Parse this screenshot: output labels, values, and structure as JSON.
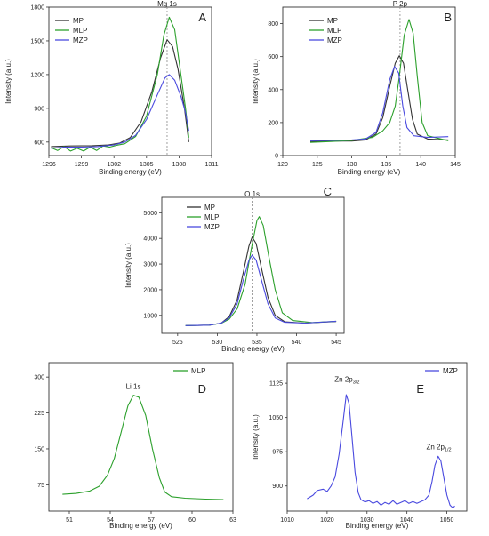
{
  "chart_data": [
    {
      "id": "A",
      "type": "line",
      "panel_label": "A",
      "xlabel": "Binding energy (eV)",
      "ylabel": "Intensity (a.u.)",
      "xlim": [
        1296,
        1311
      ],
      "ylim": [
        480,
        1800
      ],
      "xticks": [
        "1296",
        "1299",
        "1302",
        "1305",
        "1308",
        "1311"
      ],
      "yticks": [
        "600",
        "900",
        "1200",
        "1500",
        "1800"
      ],
      "xtick_values": [
        1296,
        1299,
        1302,
        1305,
        1308,
        1311
      ],
      "ytick_values": [
        600,
        900,
        1200,
        1500,
        1800
      ],
      "legend_position": "top-left",
      "refline": {
        "x": 1306.9,
        "label": "Mg 1s"
      },
      "series": [
        {
          "name": "MP",
          "color": "#333333",
          "points": [
            [
              1296.2,
              560
            ],
            [
              1298,
              565
            ],
            [
              1300,
              568
            ],
            [
              1301.5,
              575
            ],
            [
              1302.5,
              590
            ],
            [
              1303.5,
              640
            ],
            [
              1304.5,
              780
            ],
            [
              1305.5,
              1050
            ],
            [
              1306.3,
              1350
            ],
            [
              1306.9,
              1510
            ],
            [
              1307.4,
              1450
            ],
            [
              1307.9,
              1250
            ],
            [
              1308.5,
              900
            ],
            [
              1308.9,
              600
            ]
          ]
        },
        {
          "name": "MLP",
          "color": "#2ca02c",
          "points": [
            [
              1296.2,
              550
            ],
            [
              1296.8,
              525
            ],
            [
              1297.4,
              560
            ],
            [
              1298,
              520
            ],
            [
              1298.6,
              545
            ],
            [
              1299.2,
              520
            ],
            [
              1299.8,
              555
            ],
            [
              1300.4,
              525
            ],
            [
              1301,
              565
            ],
            [
              1301.6,
              555
            ],
            [
              1302.2,
              570
            ],
            [
              1303,
              585
            ],
            [
              1304,
              650
            ],
            [
              1305,
              830
            ],
            [
              1306,
              1200
            ],
            [
              1306.6,
              1550
            ],
            [
              1307.1,
              1710
            ],
            [
              1307.6,
              1600
            ],
            [
              1308.1,
              1250
            ],
            [
              1308.6,
              900
            ],
            [
              1308.9,
              640
            ]
          ]
        },
        {
          "name": "MZP",
          "color": "#4a4adf",
          "points": [
            [
              1296.2,
              545
            ],
            [
              1297.5,
              555
            ],
            [
              1299,
              555
            ],
            [
              1300.5,
              560
            ],
            [
              1302,
              575
            ],
            [
              1303,
              600
            ],
            [
              1304,
              660
            ],
            [
              1305,
              800
            ],
            [
              1306,
              1020
            ],
            [
              1306.7,
              1170
            ],
            [
              1307.1,
              1200
            ],
            [
              1307.6,
              1150
            ],
            [
              1308.2,
              1000
            ],
            [
              1308.6,
              860
            ],
            [
              1308.9,
              700
            ]
          ]
        }
      ]
    },
    {
      "id": "B",
      "type": "line",
      "panel_label": "B",
      "xlabel": "Binding energy (eV)",
      "ylabel": "Intensity (a.u.)",
      "xlim": [
        120,
        145
      ],
      "ylim": [
        0,
        900
      ],
      "xticks": [
        "120",
        "125",
        "130",
        "135",
        "140",
        "145"
      ],
      "yticks": [
        "0",
        "200",
        "400",
        "600",
        "800"
      ],
      "xtick_values": [
        120,
        125,
        130,
        135,
        140,
        145
      ],
      "ytick_values": [
        0,
        200,
        400,
        600,
        800
      ],
      "legend_position": "top-left",
      "refline": {
        "x": 137,
        "label": "P 2p"
      },
      "series": [
        {
          "name": "MP",
          "color": "#333333",
          "points": [
            [
              124,
              85
            ],
            [
              127,
              88
            ],
            [
              130,
              88
            ],
            [
              132,
              95
            ],
            [
              133.5,
              130
            ],
            [
              134.5,
              230
            ],
            [
              135.5,
              420
            ],
            [
              136.3,
              560
            ],
            [
              136.9,
              605
            ],
            [
              137.5,
              560
            ],
            [
              138.1,
              400
            ],
            [
              138.8,
              220
            ],
            [
              139.5,
              130
            ],
            [
              141,
              100
            ],
            [
              144,
              95
            ]
          ]
        },
        {
          "name": "MLP",
          "color": "#2ca02c",
          "points": [
            [
              124,
              80
            ],
            [
              127,
              85
            ],
            [
              130,
              92
            ],
            [
              133,
              110
            ],
            [
              134.5,
              150
            ],
            [
              135.5,
              200
            ],
            [
              136.3,
              300
            ],
            [
              136.9,
              480
            ],
            [
              137.6,
              730
            ],
            [
              138.3,
              825
            ],
            [
              138.9,
              740
            ],
            [
              139.5,
              480
            ],
            [
              140.2,
              200
            ],
            [
              141,
              120
            ],
            [
              144,
              90
            ]
          ]
        },
        {
          "name": "MZP",
          "color": "#4a4adf",
          "points": [
            [
              124,
              90
            ],
            [
              127,
              92
            ],
            [
              130,
              95
            ],
            [
              132,
              100
            ],
            [
              133.5,
              140
            ],
            [
              134.5,
              260
            ],
            [
              135.5,
              460
            ],
            [
              136.2,
              540
            ],
            [
              136.8,
              500
            ],
            [
              137.4,
              300
            ],
            [
              138,
              170
            ],
            [
              139,
              120
            ],
            [
              141,
              110
            ],
            [
              144,
              115
            ]
          ]
        }
      ]
    },
    {
      "id": "C",
      "type": "line",
      "panel_label": "C",
      "xlabel": "Binding energy (eV)",
      "ylabel": "Intensity (a.u.)",
      "xlim": [
        523,
        546
      ],
      "ylim": [
        300,
        5600
      ],
      "xticks": [
        "525",
        "530",
        "535",
        "540",
        "545"
      ],
      "yticks": [
        "1000",
        "2000",
        "3000",
        "4000",
        "5000"
      ],
      "xtick_values": [
        525,
        530,
        535,
        540,
        545
      ],
      "ytick_values": [
        1000,
        2000,
        3000,
        4000,
        5000
      ],
      "legend_position": "top-left",
      "refline": {
        "x": 534.4,
        "label": "O 1s"
      },
      "series": [
        {
          "name": "MP",
          "color": "#333333",
          "points": [
            [
              526,
              600
            ],
            [
              529,
              620
            ],
            [
              530.5,
              700
            ],
            [
              531.5,
              950
            ],
            [
              532.5,
              1600
            ],
            [
              533.3,
              2700
            ],
            [
              534,
              3700
            ],
            [
              534.4,
              4050
            ],
            [
              534.9,
              3800
            ],
            [
              535.6,
              2800
            ],
            [
              536.4,
              1700
            ],
            [
              537.3,
              1000
            ],
            [
              538.5,
              750
            ],
            [
              541,
              700
            ],
            [
              545,
              760
            ]
          ]
        },
        {
          "name": "MLP",
          "color": "#2ca02c",
          "points": [
            [
              526,
              600
            ],
            [
              529,
              620
            ],
            [
              530.5,
              690
            ],
            [
              531.5,
              850
            ],
            [
              532.5,
              1250
            ],
            [
              533.5,
              2200
            ],
            [
              534.3,
              3600
            ],
            [
              535,
              4700
            ],
            [
              535.3,
              4850
            ],
            [
              535.8,
              4500
            ],
            [
              536.5,
              3300
            ],
            [
              537.3,
              2000
            ],
            [
              538.2,
              1100
            ],
            [
              539.5,
              800
            ],
            [
              542,
              720
            ],
            [
              545,
              770
            ]
          ]
        },
        {
          "name": "MZP",
          "color": "#4a4adf",
          "points": [
            [
              526,
              600
            ],
            [
              529,
              620
            ],
            [
              530.5,
              700
            ],
            [
              531.5,
              900
            ],
            [
              532.5,
              1450
            ],
            [
              533.3,
              2400
            ],
            [
              534,
              3150
            ],
            [
              534.4,
              3350
            ],
            [
              534.9,
              3150
            ],
            [
              535.6,
              2350
            ],
            [
              536.4,
              1450
            ],
            [
              537.3,
              900
            ],
            [
              538.5,
              730
            ],
            [
              541,
              700
            ],
            [
              545,
              770
            ]
          ]
        }
      ]
    },
    {
      "id": "D",
      "type": "line",
      "panel_label": "D",
      "xlabel": "Binding energy (eV)",
      "ylabel": "",
      "xlim": [
        49.5,
        63
      ],
      "ylim": [
        20,
        330
      ],
      "xticks": [
        "51",
        "54",
        "57",
        "60",
        "63"
      ],
      "yticks": [
        "75",
        "150",
        "225",
        "300"
      ],
      "xtick_values": [
        51,
        54,
        57,
        60,
        63
      ],
      "ytick_values": [
        75,
        150,
        225,
        300
      ],
      "legend_position": "top-right",
      "peak_label": {
        "text": "Li 1s",
        "x": 55.7,
        "y": 275
      },
      "series": [
        {
          "name": "MLP",
          "color": "#2ca02c",
          "points": [
            [
              50.5,
              55
            ],
            [
              51.5,
              57
            ],
            [
              52.5,
              62
            ],
            [
              53.2,
              72
            ],
            [
              53.8,
              95
            ],
            [
              54.3,
              130
            ],
            [
              54.8,
              185
            ],
            [
              55.3,
              240
            ],
            [
              55.7,
              262
            ],
            [
              56.1,
              258
            ],
            [
              56.6,
              220
            ],
            [
              57.1,
              150
            ],
            [
              57.6,
              90
            ],
            [
              58,
              60
            ],
            [
              58.5,
              50
            ],
            [
              59.5,
              47
            ],
            [
              61,
              45
            ],
            [
              62.3,
              44
            ]
          ]
        }
      ]
    },
    {
      "id": "E",
      "type": "line",
      "panel_label": "E",
      "xlabel": "Binding energy (eV)",
      "ylabel": "Intensity (a.u.)",
      "xlim": [
        1010,
        1055
      ],
      "ylim": [
        845,
        1170
      ],
      "xticks": [
        "1010",
        "1020",
        "1030",
        "1040",
        "1050"
      ],
      "yticks": [
        "900",
        "975",
        "1050",
        "1125"
      ],
      "xtick_values": [
        1010,
        1020,
        1030,
        1040,
        1050
      ],
      "ytick_values": [
        900,
        975,
        1050,
        1125
      ],
      "legend_position": "top-right",
      "peak_labels": [
        {
          "main": "Zn 2p",
          "sub": "3/2",
          "x": 1025,
          "y": 1128
        },
        {
          "main": "Zn 2p",
          "sub": "1/2",
          "x": 1048,
          "y": 980
        }
      ],
      "series": [
        {
          "name": "MZP",
          "color": "#4a4adf",
          "points": [
            [
              1015,
              872
            ],
            [
              1016.5,
              880
            ],
            [
              1017.5,
              890
            ],
            [
              1019,
              893
            ],
            [
              1020,
              888
            ],
            [
              1021,
              900
            ],
            [
              1022,
              920
            ],
            [
              1023,
              970
            ],
            [
              1024,
              1040
            ],
            [
              1024.8,
              1100
            ],
            [
              1025.5,
              1080
            ],
            [
              1026.3,
              1000
            ],
            [
              1027,
              930
            ],
            [
              1027.8,
              885
            ],
            [
              1028.5,
              870
            ],
            [
              1029.5,
              865
            ],
            [
              1030.5,
              868
            ],
            [
              1031.5,
              862
            ],
            [
              1032.5,
              866
            ],
            [
              1033.5,
              858
            ],
            [
              1034.5,
              864
            ],
            [
              1035.5,
              860
            ],
            [
              1036.5,
              868
            ],
            [
              1037.5,
              860
            ],
            [
              1038.5,
              864
            ],
            [
              1039.5,
              868
            ],
            [
              1040.5,
              862
            ],
            [
              1041.5,
              866
            ],
            [
              1042.5,
              862
            ],
            [
              1043.5,
              866
            ],
            [
              1044.5,
              870
            ],
            [
              1045.5,
              880
            ],
            [
              1046.3,
              910
            ],
            [
              1047,
              945
            ],
            [
              1047.8,
              965
            ],
            [
              1048.5,
              955
            ],
            [
              1049.2,
              920
            ],
            [
              1050,
              880
            ],
            [
              1050.8,
              858
            ],
            [
              1051.5,
              852
            ],
            [
              1052,
              856
            ]
          ]
        }
      ]
    }
  ]
}
